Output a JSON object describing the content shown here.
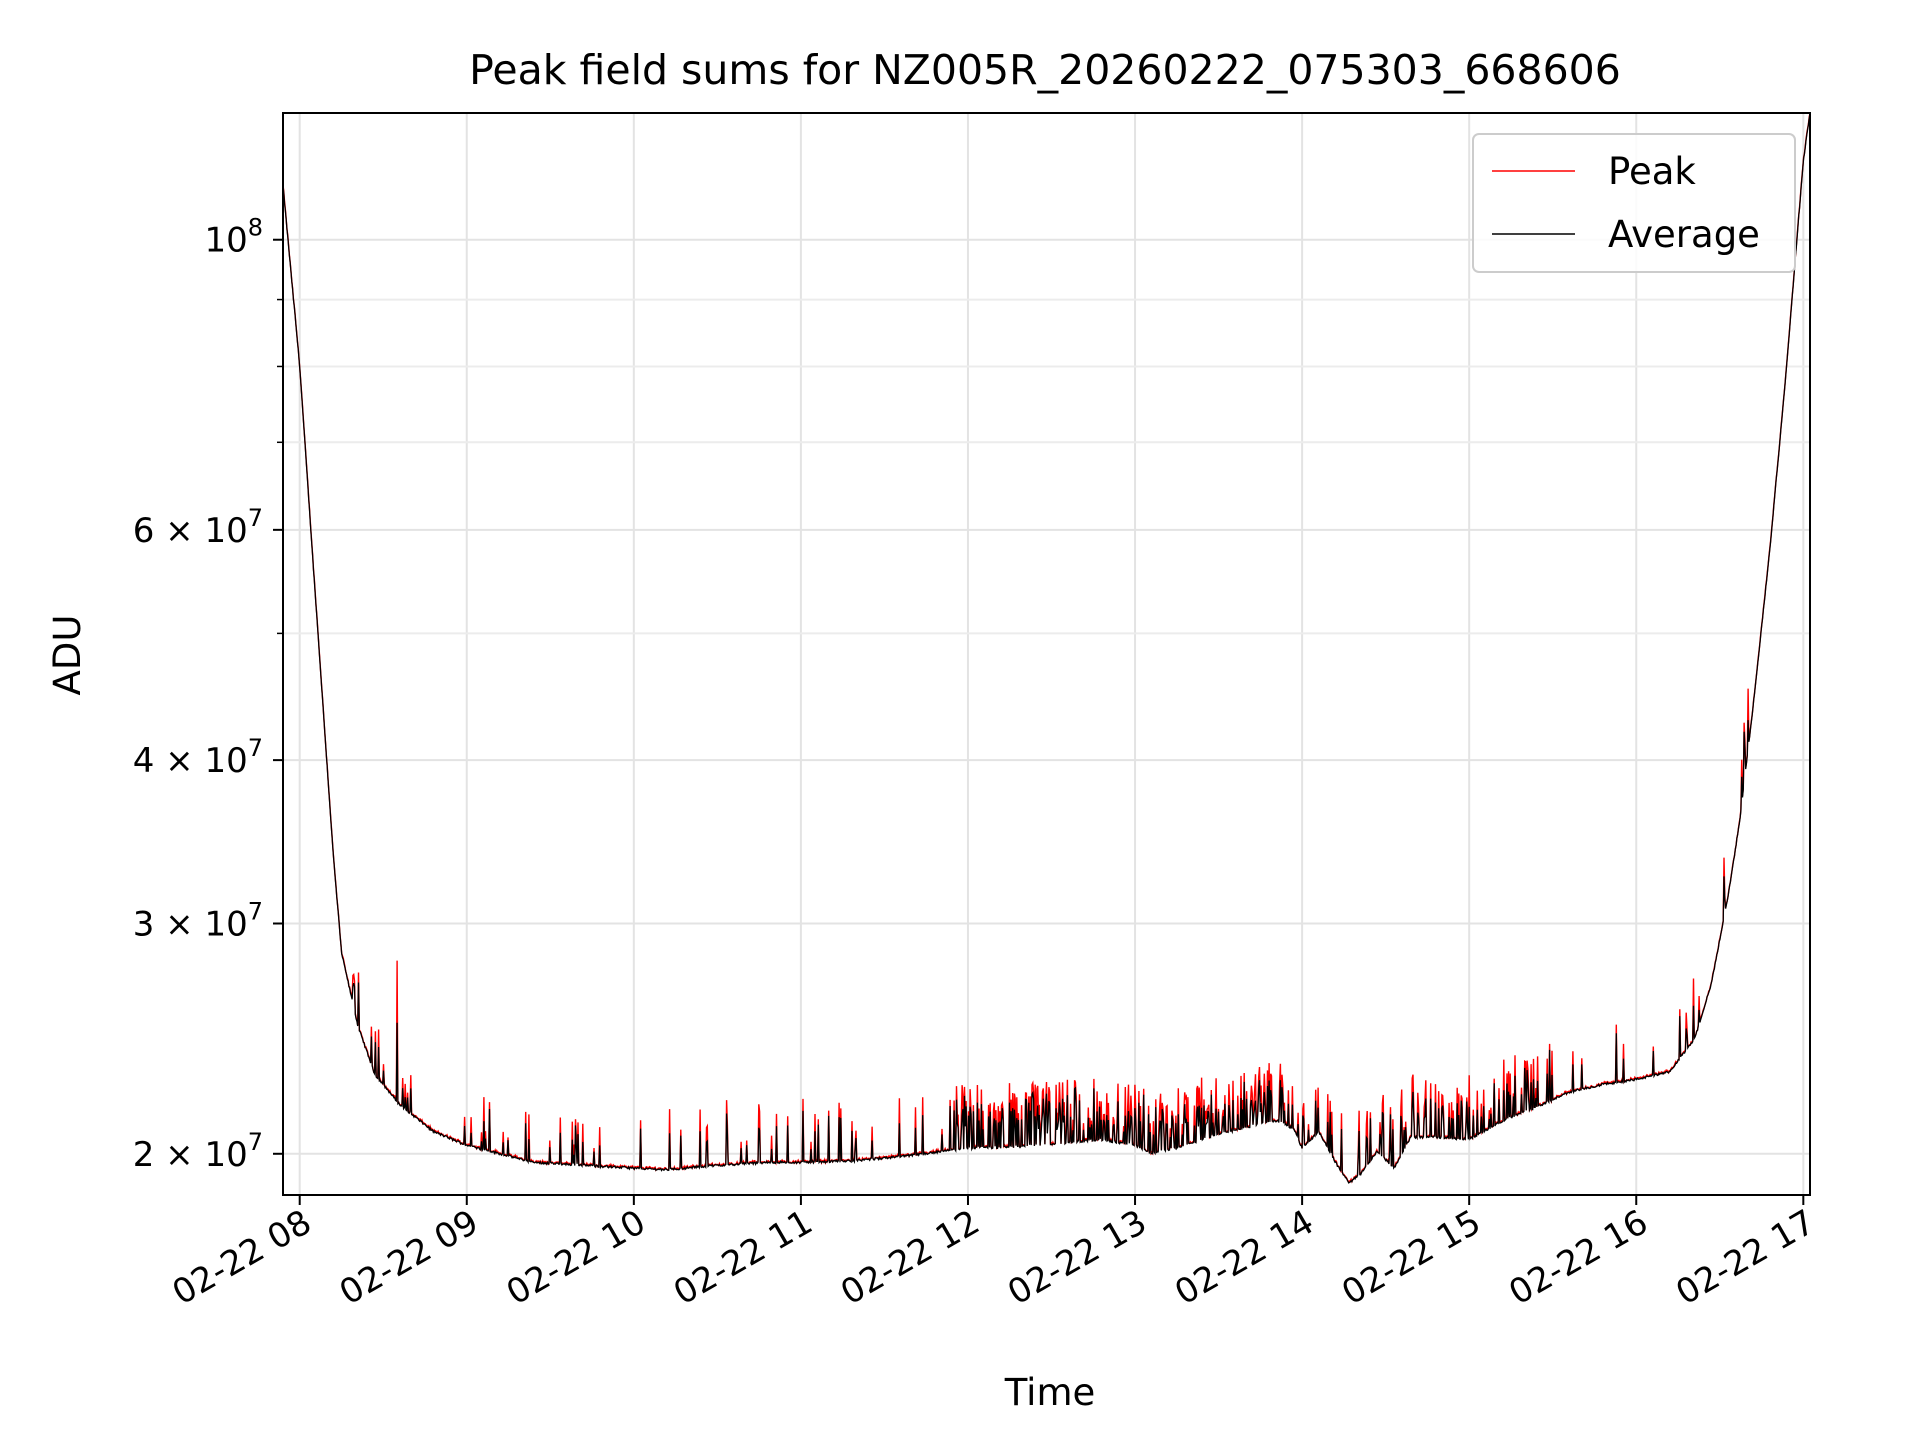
{
  "chart_data": {
    "type": "line",
    "title": "Peak field sums for NZ005R_20260222_075303_668606",
    "xlabel": "Time",
    "ylabel": "ADU",
    "yscale": "log",
    "ylim": [
      18600000,
      125000000
    ],
    "xlim_hours": [
      7.9,
      17.04
    ],
    "grid": true,
    "legend_position": "top-right",
    "x_ticks": [
      {
        "value": 8,
        "label": "02-22 08"
      },
      {
        "value": 9,
        "label": "02-22 09"
      },
      {
        "value": 10,
        "label": "02-22 10"
      },
      {
        "value": 11,
        "label": "02-22 11"
      },
      {
        "value": 12,
        "label": "02-22 12"
      },
      {
        "value": 13,
        "label": "02-22 13"
      },
      {
        "value": 14,
        "label": "02-22 14"
      },
      {
        "value": 15,
        "label": "02-22 15"
      },
      {
        "value": 16,
        "label": "02-22 16"
      },
      {
        "value": 17,
        "label": "02-22 17"
      }
    ],
    "y_ticks": [
      {
        "value": 20000000,
        "base": "2 × 10",
        "exp": "7"
      },
      {
        "value": 30000000,
        "base": "3 × 10",
        "exp": "7"
      },
      {
        "value": 40000000,
        "base": "4 × 10",
        "exp": "7"
      },
      {
        "value": 60000000,
        "base": "6 × 10",
        "exp": "7"
      },
      {
        "value": 100000000,
        "base": "10",
        "exp": "8"
      }
    ],
    "y_minor_ticks": [
      50000000,
      70000000,
      80000000,
      90000000
    ],
    "series": [
      {
        "name": "Peak",
        "color": "#ff0000"
      },
      {
        "name": "Average",
        "color": "#000000"
      }
    ],
    "baseline": {
      "x": [
        7.9,
        8.0,
        8.1,
        8.2,
        8.25,
        8.35,
        8.45,
        8.6,
        8.8,
        9.0,
        9.2,
        9.4,
        9.7,
        10.0,
        10.2,
        10.5,
        10.8,
        11.0,
        11.3,
        11.6,
        11.8,
        12.0,
        12.3,
        12.6,
        12.8,
        13.0,
        13.1,
        13.3,
        13.5,
        13.7,
        13.85,
        13.95,
        14.0,
        14.1,
        14.2,
        14.28,
        14.35,
        14.45,
        14.55,
        14.65,
        14.8,
        15.0,
        15.2,
        15.4,
        15.6,
        15.8,
        16.0,
        16.2,
        16.35,
        16.45,
        16.55,
        16.62,
        16.7,
        16.8,
        16.9,
        17.0,
        17.04
      ],
      "y": [
        110000000,
        80000000,
        52000000,
        34000000,
        28500000,
        25000000,
        23000000,
        21800000,
        20800000,
        20300000,
        20000000,
        19700000,
        19600000,
        19500000,
        19450000,
        19600000,
        19700000,
        19700000,
        19750000,
        19900000,
        20050000,
        20200000,
        20250000,
        20400000,
        20500000,
        20300000,
        20000000,
        20300000,
        20700000,
        21000000,
        21200000,
        20900000,
        20200000,
        20800000,
        19700000,
        19000000,
        19300000,
        20100000,
        19500000,
        20600000,
        20600000,
        20500000,
        21200000,
        21700000,
        22300000,
        22600000,
        22800000,
        23100000,
        24500000,
        27000000,
        31500000,
        36000000,
        44000000,
        58000000,
        80000000,
        115000000,
        125000000
      ]
    }
  }
}
